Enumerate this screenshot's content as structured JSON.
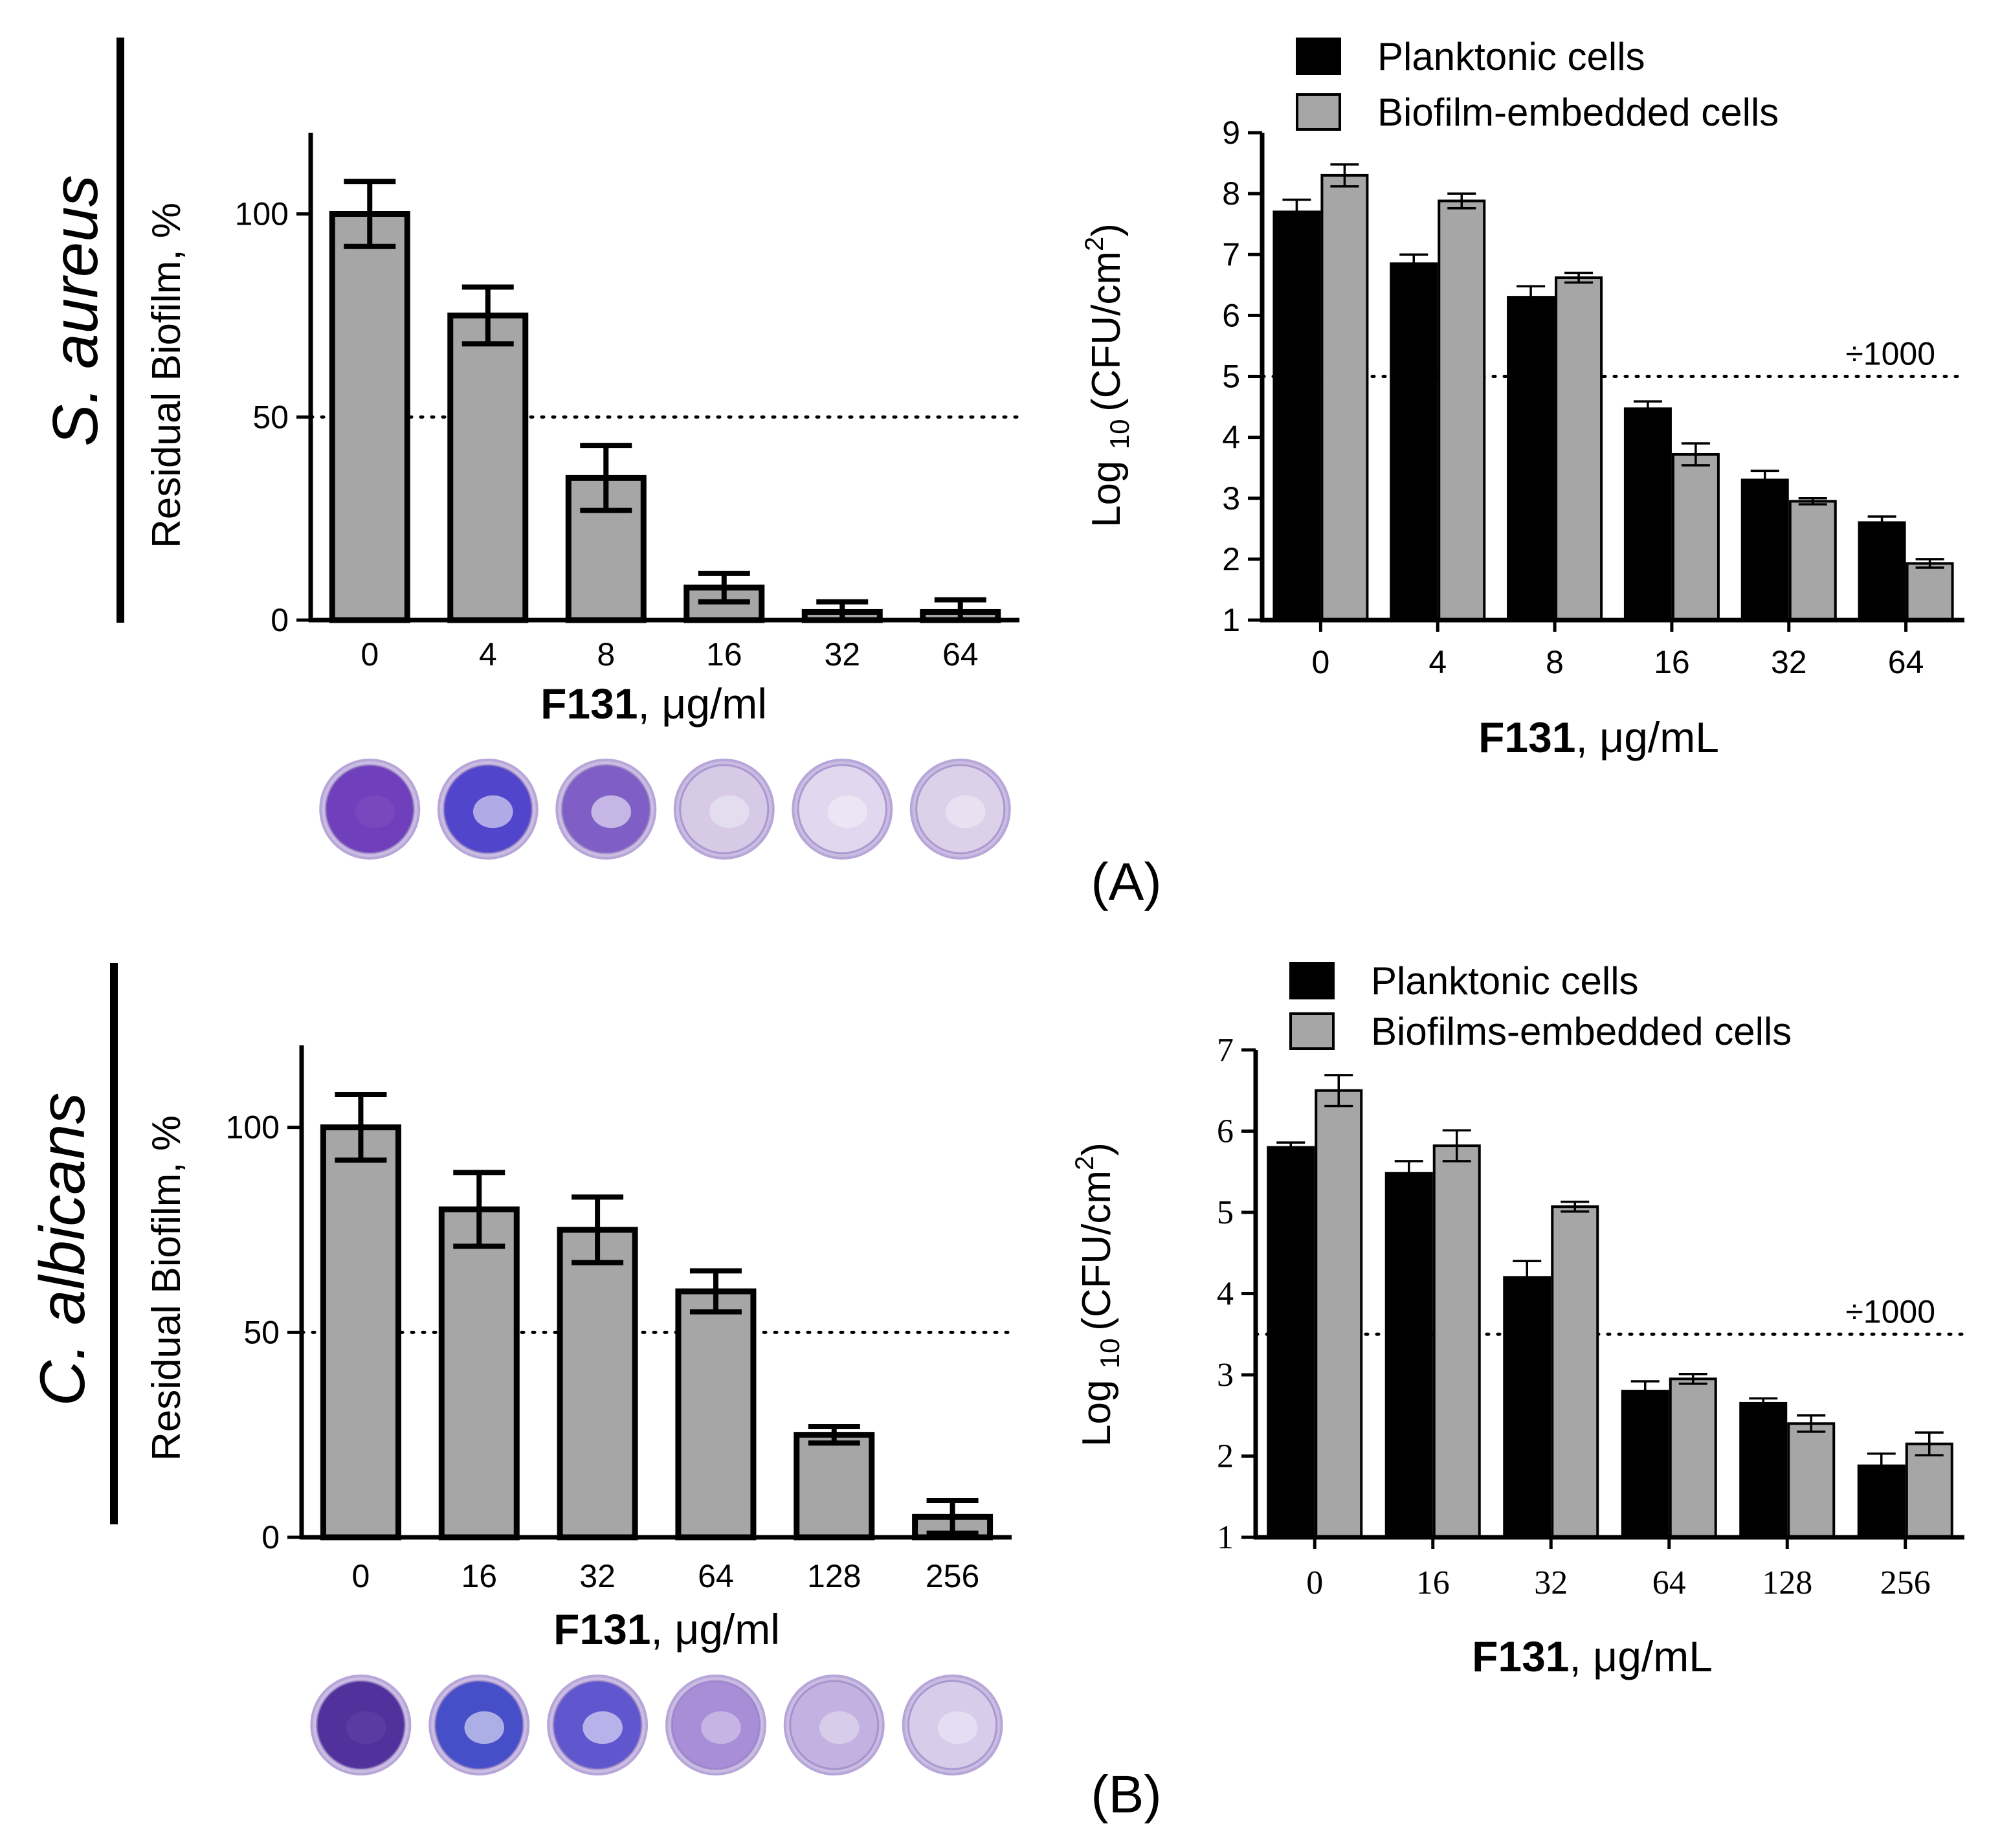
{
  "chart_data": [
    {
      "id": "A-left",
      "panel": "(A)",
      "type": "bar",
      "organism": "S. aureus",
      "ylabel": "Residual Biofilm, %",
      "xlabel_bold": "F131",
      "xlabel_rest": ", μg/ml",
      "ylim": [
        0,
        120
      ],
      "yticks": [
        0,
        50,
        100
      ],
      "threshold": 50,
      "categories": [
        "0",
        "4",
        "8",
        "16",
        "32",
        "64"
      ],
      "values": [
        100,
        75,
        35,
        8,
        2,
        2
      ],
      "errors": [
        8,
        7,
        8,
        3.5,
        2.5,
        3
      ],
      "bar_color": "#a6a6a6",
      "well_colors": [
        "#6a38b8",
        "#4a3fc9",
        "#7a58c4",
        "#d6cae6",
        "#e2d8ee",
        "#ddd2ea"
      ]
    },
    {
      "id": "A-right",
      "type": "bar",
      "ylabel": "Log",
      "ylabel_sub": "10",
      "ylabel_unit": "(CFU/cm",
      "ylabel_sup": "2",
      "ylabel_close": ")",
      "xlabel_bold": "F131",
      "xlabel_rest": ", μg/mL",
      "ylim": [
        1,
        9
      ],
      "yticks": [
        1,
        2,
        3,
        4,
        5,
        6,
        7,
        8,
        9
      ],
      "threshold": 5,
      "threshold_label": "÷1000",
      "categories": [
        "0",
        "4",
        "8",
        "16",
        "32",
        "64"
      ],
      "legend": [
        "Planktonic cells",
        "Biofilm-embedded cells"
      ],
      "series": [
        {
          "name": "Planktonic cells",
          "color": "#000000",
          "values": [
            7.7,
            6.85,
            6.3,
            4.47,
            3.3,
            2.6
          ],
          "errors": [
            0.2,
            0.15,
            0.18,
            0.12,
            0.15,
            0.1
          ]
        },
        {
          "name": "Biofilm-embedded cells",
          "color": "#a6a6a6",
          "values": [
            8.3,
            7.88,
            6.62,
            3.72,
            2.95,
            1.93
          ],
          "errors": [
            0.18,
            0.12,
            0.08,
            0.18,
            0.05,
            0.07
          ]
        }
      ]
    },
    {
      "id": "B-left",
      "panel": "(B)",
      "type": "bar",
      "organism": "C. albicans",
      "ylabel": "Residual Biofilm, %",
      "xlabel_bold": "F131",
      "xlabel_rest": ", μg/ml",
      "ylim": [
        0,
        120
      ],
      "yticks": [
        0,
        50,
        100
      ],
      "threshold": 50,
      "categories": [
        "0",
        "16",
        "32",
        "64",
        "128",
        "256"
      ],
      "values": [
        100,
        80,
        75,
        60,
        25,
        5
      ],
      "errors": [
        8,
        9,
        8,
        5,
        2,
        4
      ],
      "bar_color": "#a6a6a6",
      "well_colors": [
        "#4a2a98",
        "#3e48c6",
        "#5a50cc",
        "#a58ad6",
        "#c2b0e0",
        "#d8cceb"
      ]
    },
    {
      "id": "B-right",
      "type": "bar",
      "ylabel": "Log",
      "ylabel_sub": "10",
      "ylabel_unit": "(CFU/cm",
      "ylabel_sup": "2",
      "ylabel_close": ")",
      "xlabel_bold": "F131",
      "xlabel_rest": ", μg/mL",
      "ylim": [
        1,
        7
      ],
      "yticks": [
        1,
        2,
        3,
        4,
        5,
        6,
        7
      ],
      "threshold": 3.5,
      "threshold_label": "÷1000",
      "categories": [
        "0",
        "16",
        "32",
        "64",
        "128",
        "256"
      ],
      "legend": [
        "Planktonic cells",
        "Biofilms-embedded cells"
      ],
      "series": [
        {
          "name": "Planktonic cells",
          "color": "#000000",
          "values": [
            5.8,
            5.48,
            4.2,
            2.8,
            2.65,
            1.88
          ],
          "errors": [
            0.06,
            0.15,
            0.2,
            0.12,
            0.06,
            0.15
          ]
        },
        {
          "name": "Biofilms-embedded cells",
          "color": "#a6a6a6",
          "values": [
            6.5,
            5.82,
            5.07,
            2.95,
            2.4,
            2.15
          ],
          "errors": [
            0.19,
            0.19,
            0.06,
            0.06,
            0.1,
            0.14
          ]
        }
      ]
    }
  ]
}
